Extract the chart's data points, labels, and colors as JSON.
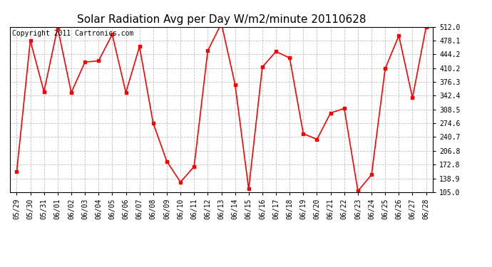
{
  "title": "Solar Radiation Avg per Day W/m2/minute 20110628",
  "copyright": "Copyright 2011 Cartronics.com",
  "dates": [
    "05/29",
    "05/30",
    "05/31",
    "06/01",
    "06/02",
    "06/03",
    "06/04",
    "06/05",
    "06/06",
    "06/07",
    "06/08",
    "06/09",
    "06/10",
    "06/11",
    "06/12",
    "06/13",
    "06/14",
    "06/15",
    "06/16",
    "06/17",
    "06/18",
    "06/19",
    "06/20",
    "06/21",
    "06/22",
    "06/23",
    "06/24",
    "06/25",
    "06/26",
    "06/27",
    "06/28"
  ],
  "values": [
    155,
    478,
    352,
    510,
    350,
    425,
    428,
    493,
    350,
    463,
    275,
    181,
    130,
    168,
    453,
    520,
    370,
    113,
    413,
    451,
    435,
    249,
    235,
    300,
    311,
    108,
    148,
    409,
    490,
    337,
    512
  ],
  "line_color": "#ff0000",
  "marker_color": "#ff0000",
  "bg_color": "#ffffff",
  "grid_color": "#bbbbbb",
  "ylim": [
    105.0,
    512.0
  ],
  "yticks": [
    105.0,
    138.9,
    172.8,
    206.8,
    240.7,
    274.6,
    308.5,
    342.4,
    376.3,
    410.2,
    444.2,
    478.1,
    512.0
  ],
  "title_fontsize": 11,
  "copyright_fontsize": 7,
  "tick_fontsize": 7
}
